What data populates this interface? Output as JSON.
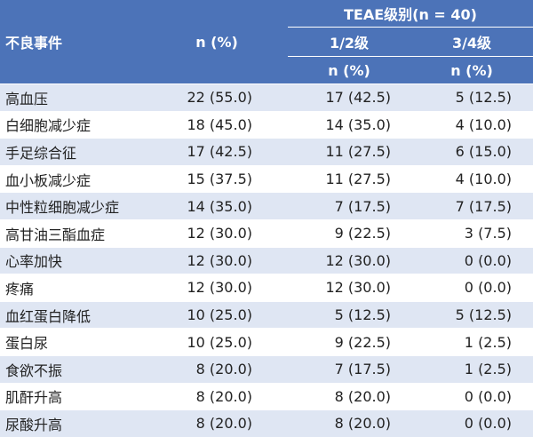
{
  "header": {
    "event_label": "不良事件",
    "n_pct_label": "n (%)",
    "teae_grade_label": "TEAE级别(n = 40)",
    "grade12_label": "1/2级",
    "grade34_label": "3/4级",
    "grade12_n_label": "n (%)",
    "grade34_n_label": "n (%)"
  },
  "rows": [
    {
      "event": "高血压",
      "total": "22 (55.0)",
      "g12": "17 (42.5)",
      "g34": "5 (12.5)"
    },
    {
      "event": "白细胞减少症",
      "total": "18 (45.0)",
      "g12": "14 (35.0)",
      "g34": "4 (10.0)"
    },
    {
      "event": "手足综合征",
      "total": "17 (42.5)",
      "g12": "11 (27.5)",
      "g34": "6 (15.0)"
    },
    {
      "event": "血小板减少症",
      "total": "15 (37.5)",
      "g12": "11 (27.5)",
      "g34": "4 (10.0)"
    },
    {
      "event": "中性粒细胞减少症",
      "total": "14 (35.0)",
      "g12": "7 (17.5)",
      "g34": "7 (17.5)"
    },
    {
      "event": "高甘油三酯血症",
      "total": "12 (30.0)",
      "g12": "9 (22.5)",
      "g34": "3 (7.5)"
    },
    {
      "event": "心率加快",
      "total": "12 (30.0)",
      "g12": "12 (30.0)",
      "g34": "0 (0.0)"
    },
    {
      "event": "疼痛",
      "total": "12 (30.0)",
      "g12": "12 (30.0)",
      "g34": "0 (0.0)"
    },
    {
      "event": "血红蛋白降低",
      "total": "10 (25.0)",
      "g12": "5 (12.5)",
      "g34": "5 (12.5)"
    },
    {
      "event": "蛋白尿",
      "total": "10 (25.0)",
      "g12": "9 (22.5)",
      "g34": "1 (2.5)"
    },
    {
      "event": "食欲不振",
      "total": "8 (20.0)",
      "g12": "7 (17.5)",
      "g34": "1 (2.5)"
    },
    {
      "event": "肌酐升高",
      "total": "8 (20.0)",
      "g12": "8 (20.0)",
      "g34": "0 (0.0)"
    },
    {
      "event": "尿酸升高",
      "total": "8 (20.0)",
      "g12": "8 (20.0)",
      "g34": "0 (0.0)"
    }
  ],
  "colors": {
    "header_bg": "#4c73b8",
    "header_text": "#ffffff",
    "stripe": "#dfe6f3",
    "body_text": "#222222"
  }
}
